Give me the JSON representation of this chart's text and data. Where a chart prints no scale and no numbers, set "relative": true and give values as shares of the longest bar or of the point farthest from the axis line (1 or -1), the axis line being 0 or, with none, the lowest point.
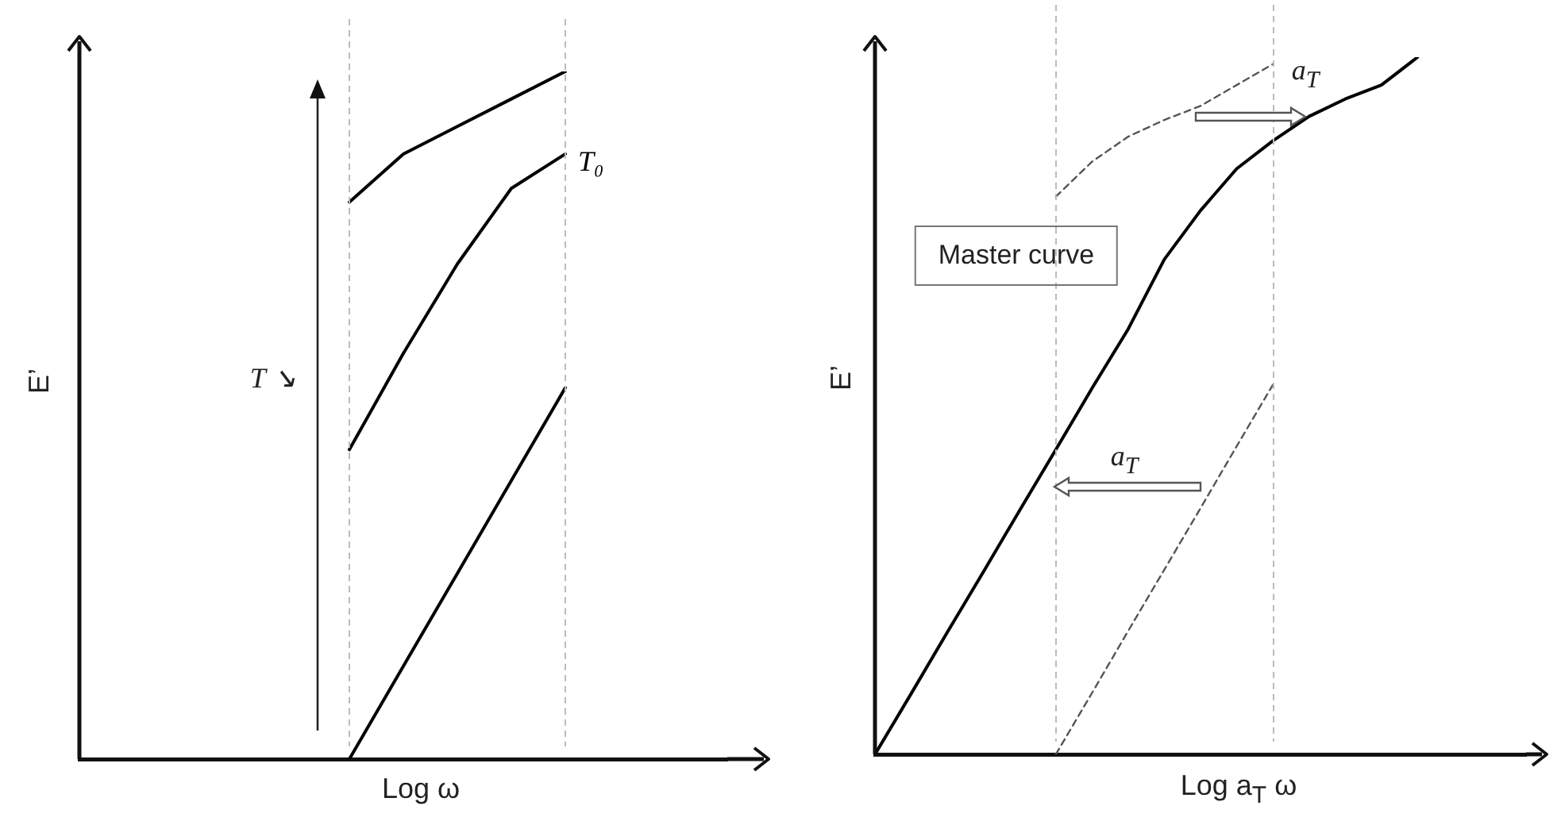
{
  "chart_data": [
    {
      "type": "line",
      "xlabel": "Log ω",
      "ylabel": "E’",
      "relative": true,
      "tick_labels": false,
      "categories": [
        null,
        null,
        null,
        null,
        null,
        null,
        null,
        null,
        null,
        null,
        null,
        null,
        null
      ],
      "series": [
        {
          "color": "#000000",
          "values": [
            null,
            null,
            null,
            null,
            null,
            0.81,
            0.88,
            0.92,
            0.96,
            1.0,
            null,
            null,
            null
          ]
        },
        {
          "name": "T₀",
          "color": "#000000",
          "values": [
            null,
            null,
            null,
            null,
            null,
            0.45,
            0.59,
            0.72,
            0.83,
            0.88,
            null,
            null,
            null
          ]
        },
        {
          "color": "#000000",
          "values": [
            null,
            null,
            null,
            null,
            null,
            0,
            0.135,
            0.27,
            0.405,
            0.54,
            null,
            null,
            null
          ]
        }
      ],
      "annotations": [
        "T ↘"
      ]
    },
    {
      "type": "line",
      "xlabel": "Log a$_{T}$ ω",
      "ylabel": "E’",
      "relative": true,
      "tick_labels": false,
      "categories": [
        null,
        null,
        null,
        null,
        null,
        null,
        null,
        null,
        null,
        null,
        null,
        null,
        null,
        null,
        null,
        null,
        null,
        null,
        null
      ],
      "series": [
        {
          "color": "#000000",
          "values": [
            0,
            0.087,
            0.175,
            0.262,
            0.35,
            0.437,
            0.525,
            0.61,
            0.71,
            0.78,
            0.84,
            0.88,
            0.915,
            0.94,
            0.96,
            1.0,
            null,
            null,
            null
          ]
        },
        {
          "color": "#555555",
          "line_style": "dashed",
          "values": [
            null,
            null,
            null,
            null,
            null,
            0.8,
            0.85,
            0.886,
            0.91,
            0.93,
            0.96,
            0.99,
            null,
            null,
            null,
            null,
            null,
            null,
            null
          ]
        },
        {
          "color": "#555555",
          "line_style": "dashed",
          "values": [
            null,
            null,
            null,
            null,
            null,
            0,
            0.088,
            0.177,
            0.265,
            0.353,
            0.442,
            0.53,
            null,
            null,
            null,
            null,
            null,
            null,
            null
          ]
        }
      ],
      "annotations": [
        "Master curve",
        "a$_{T}$",
        "a$_{T}$"
      ]
    }
  ]
}
